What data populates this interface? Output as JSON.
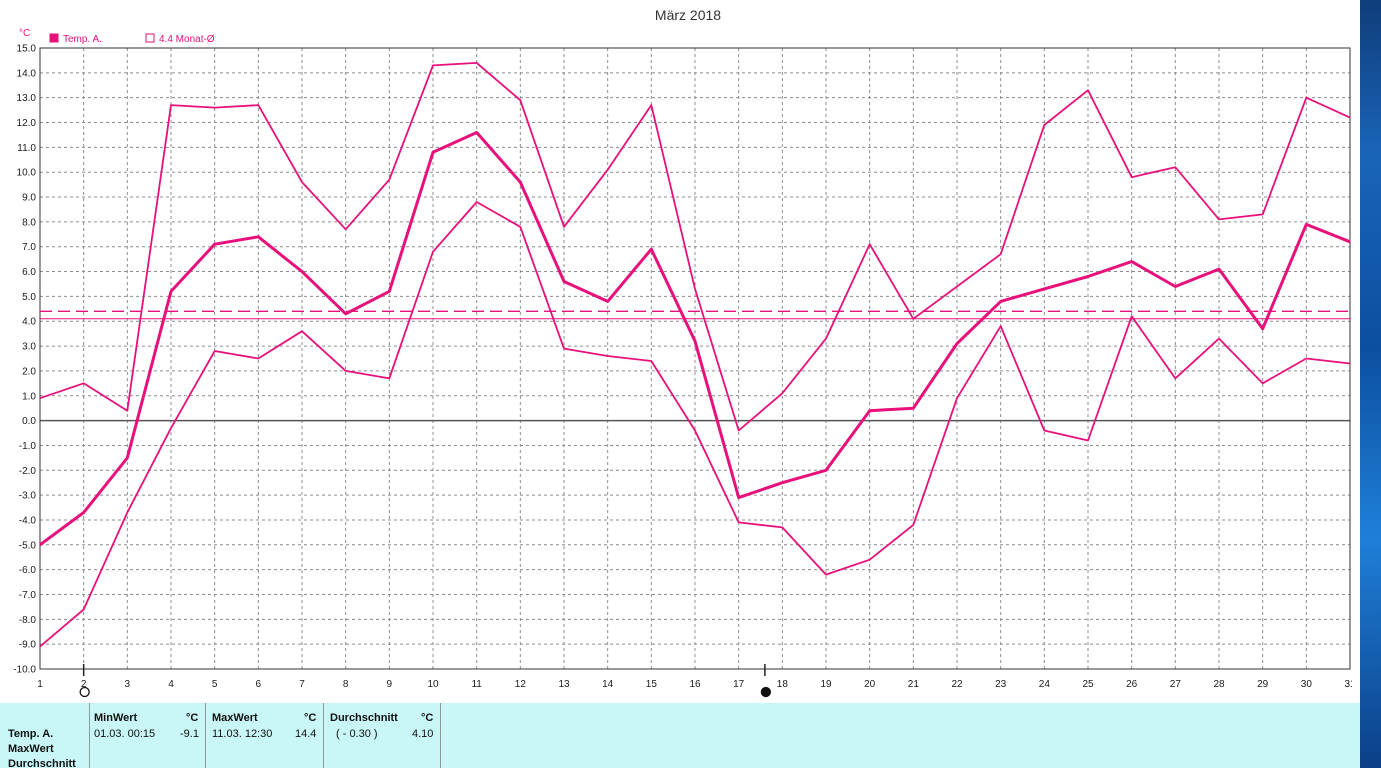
{
  "chart_data": {
    "type": "line",
    "title": "März 2018",
    "unit_label": "°C",
    "x": [
      1,
      2,
      3,
      4,
      5,
      6,
      7,
      8,
      9,
      10,
      11,
      12,
      13,
      14,
      15,
      16,
      17,
      18,
      19,
      20,
      21,
      22,
      23,
      24,
      25,
      26,
      27,
      28,
      29,
      30,
      31
    ],
    "x_ticks": [
      1,
      2,
      3,
      4,
      5,
      6,
      7,
      8,
      9,
      10,
      11,
      12,
      13,
      14,
      15,
      16,
      17,
      18,
      19,
      20,
      21,
      22,
      23,
      24,
      25,
      26,
      27,
      28,
      29,
      30,
      31
    ],
    "ylim": [
      -10,
      15
    ],
    "y_ticks": [
      "15.0",
      "14.0",
      "13.0",
      "12.0",
      "11.0",
      "10.0",
      "9.0",
      "8.0",
      "7.0",
      "6.0",
      "5.0",
      "4.0",
      "3.0",
      "2.0",
      "1.0",
      "0.0",
      "-1.0",
      "-2.0",
      "-3.0",
      "-4.0",
      "-5.0",
      "-6.0",
      "-7.0",
      "-8.0",
      "-9.0",
      "-10.0"
    ],
    "grid": true,
    "legend": [
      {
        "label": "Temp. A.",
        "filled": true
      },
      {
        "label": "4.4 Monat-Ø",
        "filled": false
      }
    ],
    "series": [
      {
        "name": "Temp. A.",
        "role": "mean",
        "color": "#e8107a",
        "values": [
          -5.0,
          -3.7,
          -1.5,
          5.2,
          7.1,
          7.4,
          6.0,
          4.3,
          5.2,
          10.8,
          11.6,
          9.6,
          5.6,
          4.8,
          6.9,
          3.2,
          -3.1,
          -2.5,
          -2.0,
          0.4,
          0.5,
          3.1,
          4.8,
          5.3,
          5.8,
          6.4,
          5.4,
          6.1,
          3.7,
          7.9,
          7.2
        ]
      },
      {
        "role": "max",
        "color": "#e8107a",
        "values": [
          0.9,
          1.5,
          0.4,
          12.7,
          12.6,
          12.7,
          9.6,
          7.7,
          9.7,
          14.3,
          14.4,
          12.9,
          7.8,
          10.1,
          12.7,
          5.3,
          -0.4,
          1.1,
          3.3,
          7.1,
          4.1,
          5.4,
          6.7,
          11.9,
          13.3,
          9.8,
          10.2,
          8.1,
          8.3,
          13.0,
          12.2
        ]
      },
      {
        "role": "min",
        "color": "#e8107a",
        "values": [
          -9.1,
          -7.6,
          -3.7,
          -0.3,
          2.8,
          2.5,
          3.6,
          2.0,
          1.7,
          6.8,
          8.8,
          7.8,
          2.9,
          2.6,
          2.4,
          -0.4,
          -4.1,
          -4.3,
          -6.2,
          -5.6,
          -4.2,
          0.9,
          3.8,
          -0.4,
          -0.8,
          4.2,
          1.7,
          3.3,
          1.5,
          2.5,
          2.3
        ]
      }
    ],
    "reference_lines": [
      {
        "value": 4.4,
        "style": "dashed",
        "color": "#e8107a"
      },
      {
        "value": 4.1,
        "style": "solid-thin",
        "color": "#e8107a"
      }
    ],
    "markers": [
      {
        "x": 2,
        "symbol": "open-circle"
      },
      {
        "x": 17.6,
        "symbol": "filled-circle"
      }
    ]
  },
  "stats": {
    "row_labels": [
      "Temp. A.",
      "MaxWert",
      "Durchschnitt"
    ],
    "min": {
      "header": "MinWert",
      "unit": "°C",
      "when": "01.03.  00:15",
      "value": "-9.1"
    },
    "max": {
      "header": "MaxWert",
      "unit": "°C",
      "when": "11.03.  12:30",
      "value": "14.4"
    },
    "avg": {
      "header": "Durchschnitt",
      "unit": "°C",
      "note": "( - 0.30 )",
      "value": "4.10"
    }
  },
  "colors": {
    "accent": "#e8107a",
    "panel": "#c9f6f6"
  }
}
